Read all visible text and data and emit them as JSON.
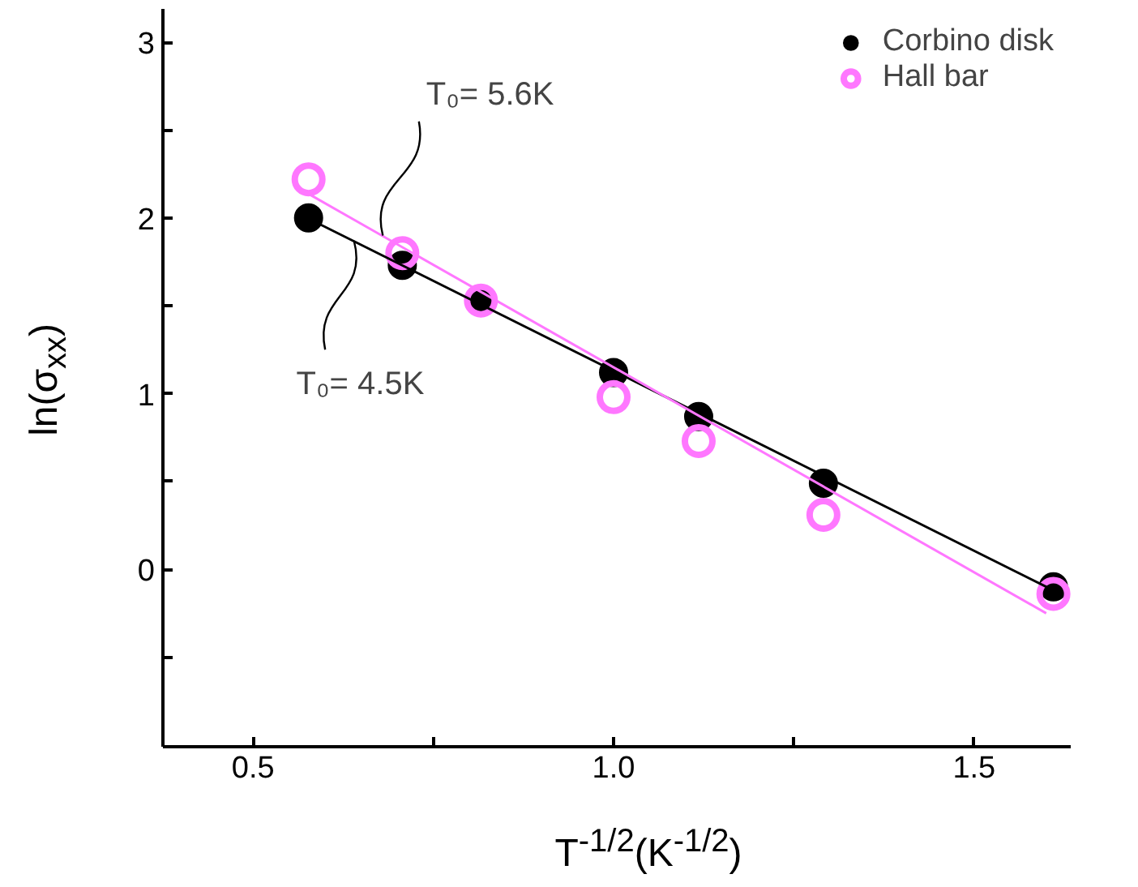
{
  "chart_data": {
    "type": "scatter",
    "xlabel": "T$^{-1/2}$(K$^{-1/2}$)",
    "ylabel": "ln(σ$_{xx}$)",
    "xlim": [
      0.375,
      1.634
    ],
    "ylim": [
      -1.01,
      3.19
    ],
    "xticks": [
      {
        "value": 0.5,
        "label": "0.5"
      },
      {
        "value": 0.75,
        "label": null
      },
      {
        "value": 1.0,
        "label": "1.0"
      },
      {
        "value": 1.25,
        "label": null
      },
      {
        "value": 1.5,
        "label": "1.5"
      }
    ],
    "yticks": [
      {
        "value": -0.5,
        "label": null
      },
      0,
      {
        "value": 0.5,
        "label": null
      },
      1,
      {
        "value": 1.5,
        "label": null
      },
      2,
      {
        "value": 2.5,
        "label": null
      },
      3
    ],
    "grid": false,
    "legend": "top right",
    "series": [
      {
        "name": "Corbino disk",
        "marker": "circle",
        "color": "#000000",
        "x": [
          0.577,
          0.707,
          0.816,
          1.0,
          1.118,
          1.291,
          1.61
        ],
        "values": [
          2.0,
          1.73,
          1.52,
          1.12,
          0.87,
          0.49,
          -0.1
        ]
      },
      {
        "name": "Hall bar",
        "marker": "circle",
        "color": "#ff77ff",
        "x": [
          0.577,
          0.707,
          0.816,
          1.0,
          1.118,
          1.291,
          1.61
        ],
        "values": [
          2.22,
          1.8,
          1.53,
          0.98,
          0.73,
          0.31,
          -0.14
        ]
      },
      {
        "type": "line",
        "color": "#000000",
        "x": [
          0.58,
          1.61
        ],
        "values": [
          1.99,
          -0.12
        ]
      },
      {
        "type": "line",
        "color": "#ff77ff",
        "x": [
          0.58,
          1.6
        ],
        "values": [
          2.13,
          -0.25
        ]
      }
    ],
    "annotations": [
      {
        "text": "T₀= 5.6K",
        "x": 0.68,
        "y": 1.9
      },
      {
        "text": "T₀= 4.5K",
        "x": 0.64,
        "y": 1.87
      }
    ]
  }
}
